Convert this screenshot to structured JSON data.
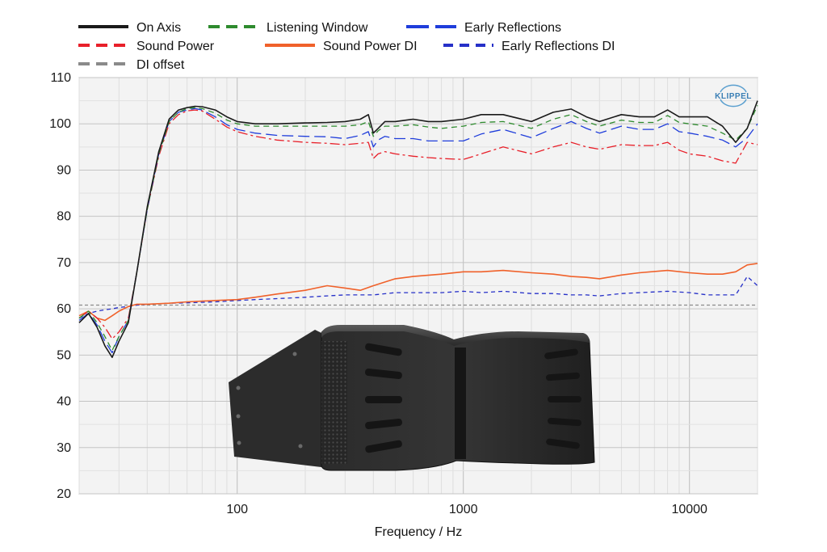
{
  "chart_data": {
    "type": "line",
    "xlabel": "Frequency / Hz",
    "ylabel": "",
    "xscale": "log",
    "xlim": [
      20,
      20000
    ],
    "ylim": [
      20,
      110
    ],
    "yticks": [
      20,
      30,
      40,
      50,
      60,
      70,
      80,
      90,
      100,
      110
    ],
    "xticks": [
      100,
      1000,
      10000
    ],
    "xtick_labels": [
      "100",
      "1000",
      "10000"
    ],
    "grid": true,
    "legend_position": "top",
    "logo_text": "KLIPPEL",
    "series": [
      {
        "name": "On Axis",
        "color": "#1a1a1a",
        "dash": "solid",
        "x": [
          20,
          22,
          24,
          26,
          28,
          30,
          33,
          36,
          40,
          45,
          50,
          55,
          60,
          65,
          70,
          80,
          90,
          100,
          120,
          150,
          200,
          250,
          300,
          350,
          380,
          400,
          420,
          450,
          500,
          600,
          700,
          800,
          1000,
          1200,
          1500,
          2000,
          2500,
          3000,
          3500,
          4000,
          5000,
          6000,
          7000,
          8000,
          9000,
          10000,
          12000,
          14000,
          16000,
          18000,
          20000
        ],
        "y": [
          57,
          59,
          56,
          52,
          49.5,
          53,
          57,
          68,
          82,
          94,
          101,
          103,
          103.5,
          103.8,
          103.7,
          103,
          101.5,
          100.5,
          100,
          100,
          100.2,
          100.3,
          100.5,
          101,
          102,
          98,
          99,
          100.5,
          100.5,
          101,
          100.5,
          100.5,
          101,
          102,
          102,
          100.5,
          102.5,
          103.2,
          101.5,
          100.5,
          102,
          101.5,
          101.5,
          103,
          101.5,
          101.5,
          101.5,
          99.5,
          96,
          99,
          105
        ]
      },
      {
        "name": "Listening Window",
        "color": "#2e8b2e",
        "dash": "7,5",
        "x": [
          20,
          22,
          24,
          26,
          28,
          30,
          33,
          36,
          40,
          45,
          50,
          55,
          60,
          65,
          70,
          80,
          90,
          100,
          120,
          150,
          200,
          250,
          300,
          350,
          380,
          400,
          420,
          450,
          500,
          600,
          700,
          800,
          1000,
          1200,
          1500,
          2000,
          2500,
          3000,
          3500,
          4000,
          5000,
          6000,
          7000,
          8000,
          9000,
          10000,
          12000,
          14000,
          16000,
          18000,
          20000
        ],
        "y": [
          58,
          59.5,
          57,
          54,
          51,
          54,
          57.5,
          68,
          81.5,
          93.5,
          100.5,
          102.5,
          103.3,
          103.5,
          103.3,
          102.3,
          100.8,
          100,
          99.5,
          99.5,
          99.5,
          99.5,
          99.5,
          99.8,
          100.5,
          97.3,
          98.5,
          99.5,
          99.5,
          99.8,
          99.3,
          99,
          99.5,
          100.3,
          100.5,
          99,
          101,
          102,
          100.5,
          99.5,
          100.8,
          100.3,
          100.3,
          101.8,
          100.3,
          100,
          99.5,
          98,
          96.5,
          99,
          104
        ]
      },
      {
        "name": "Early Reflections",
        "color": "#1f3ddb",
        "dash": "14,6",
        "x": [
          20,
          22,
          24,
          26,
          28,
          30,
          33,
          36,
          40,
          45,
          50,
          55,
          60,
          65,
          70,
          80,
          90,
          100,
          120,
          150,
          200,
          250,
          300,
          350,
          380,
          400,
          420,
          450,
          500,
          600,
          700,
          800,
          1000,
          1200,
          1500,
          2000,
          2500,
          3000,
          3500,
          4000,
          5000,
          6000,
          7000,
          8000,
          9000,
          10000,
          12000,
          14000,
          16000,
          18000,
          20000
        ],
        "y": [
          57.5,
          59,
          56.5,
          53,
          50.5,
          54,
          57.5,
          68,
          81.5,
          93.5,
          100.5,
          102.5,
          103,
          103.3,
          103,
          101.5,
          99.8,
          98.8,
          98,
          97.5,
          97.3,
          97.2,
          96.8,
          97.5,
          98.3,
          95,
          96.5,
          97.3,
          96.8,
          96.8,
          96.3,
          96.3,
          96.3,
          97.8,
          98.8,
          97,
          99,
          100.5,
          99,
          98,
          99.5,
          98.8,
          98.8,
          100,
          98.3,
          98,
          97.3,
          96.5,
          95,
          97,
          100
        ]
      },
      {
        "name": "Sound Power",
        "color": "#e8202a",
        "dash": "12,4,3,4",
        "x": [
          20,
          22,
          24,
          26,
          28,
          30,
          33,
          36,
          40,
          45,
          50,
          55,
          60,
          65,
          70,
          80,
          90,
          100,
          120,
          150,
          200,
          250,
          300,
          350,
          380,
          400,
          420,
          450,
          500,
          600,
          700,
          800,
          1000,
          1200,
          1500,
          2000,
          2500,
          3000,
          3500,
          4000,
          5000,
          6000,
          7000,
          8000,
          9000,
          10000,
          12000,
          14000,
          16000,
          18000,
          20000
        ],
        "y": [
          58,
          59.5,
          58,
          56,
          53.5,
          55,
          58,
          68,
          81.5,
          93,
          100,
          102,
          102.8,
          103,
          102.8,
          101,
          99.3,
          98.3,
          97.3,
          96.5,
          96,
          95.8,
          95.5,
          95.8,
          96,
          92.5,
          93.5,
          94,
          93.5,
          93,
          92.7,
          92.5,
          92.3,
          93.5,
          95,
          93.5,
          95,
          96,
          95,
          94.5,
          95.5,
          95.3,
          95.3,
          96,
          94.3,
          93.5,
          93,
          92,
          91.5,
          96,
          95.5
        ]
      },
      {
        "name": "Sound Power DI",
        "color": "#f0612a",
        "dash": "solid",
        "x": [
          20,
          22,
          24,
          26,
          28,
          30,
          33,
          36,
          40,
          50,
          60,
          80,
          100,
          120,
          150,
          200,
          250,
          300,
          350,
          400,
          500,
          600,
          800,
          1000,
          1200,
          1500,
          2000,
          2500,
          3000,
          3500,
          4000,
          5000,
          6000,
          8000,
          10000,
          12000,
          14000,
          16000,
          18000,
          20000
        ],
        "y": [
          58.5,
          59.5,
          58,
          57.5,
          58.5,
          59.5,
          60.5,
          61,
          61,
          61.2,
          61.5,
          61.8,
          62,
          62.5,
          63.2,
          64,
          65,
          64.5,
          64,
          65,
          66.5,
          67,
          67.5,
          68,
          68,
          68.3,
          67.8,
          67.5,
          67,
          66.8,
          66.5,
          67.3,
          67.8,
          68.3,
          67.8,
          67.5,
          67.5,
          68,
          69.5,
          69.8
        ]
      },
      {
        "name": "Early Reflections DI",
        "color": "#2630c8",
        "dash": "5,4",
        "x": [
          20,
          22,
          24,
          26,
          28,
          30,
          33,
          36,
          40,
          50,
          60,
          80,
          100,
          120,
          150,
          200,
          250,
          300,
          350,
          400,
          500,
          600,
          800,
          1000,
          1200,
          1500,
          2000,
          2500,
          3000,
          3500,
          4000,
          5000,
          6000,
          8000,
          10000,
          12000,
          14000,
          16000,
          17000,
          18000,
          20000
        ],
        "y": [
          58,
          59,
          59.5,
          59.8,
          60,
          60.3,
          60.5,
          60.8,
          61,
          61.2,
          61.3,
          61.5,
          61.8,
          62,
          62.2,
          62.5,
          62.8,
          63,
          63,
          63,
          63.5,
          63.5,
          63.5,
          63.8,
          63.5,
          63.8,
          63.3,
          63.3,
          63,
          63,
          62.8,
          63.3,
          63.5,
          63.8,
          63.5,
          63,
          63,
          63,
          65,
          67,
          65
        ]
      },
      {
        "name": "DI offset",
        "color": "#8a8a8a",
        "dash": "4,3",
        "x": [
          20,
          20000
        ],
        "y": [
          60.8,
          60.8
        ]
      }
    ]
  }
}
